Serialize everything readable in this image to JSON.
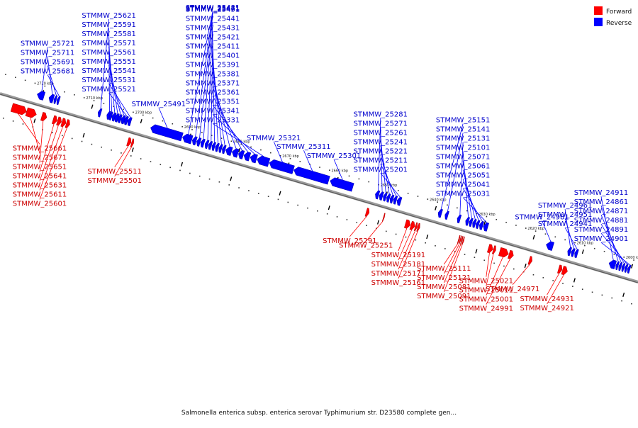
{
  "caption": "Salmonella enterica subsp. enterica serovar Typhimurium str. D23580 complete gen...",
  "colors": {
    "forward": "#ff0000",
    "forward_label": "#cc0000",
    "reverse": "#0000ff",
    "reverse_label": "#0000cc",
    "backbone": "#777777",
    "tick": "#000000"
  },
  "legend": [
    {
      "label": "Forward",
      "strand": "forward"
    },
    {
      "label": "Reverse",
      "strand": "reverse"
    }
  ],
  "scale": {
    "unit": "kbp",
    "ticks": [
      {
        "kbp": 2720,
        "label": "2720 kbp"
      },
      {
        "kbp": 2710,
        "label": "2710 kbp"
      },
      {
        "kbp": 2700,
        "label": "2700 kbp"
      },
      {
        "kbp": 2690,
        "label": "2690 kbp"
      },
      {
        "kbp": 2680,
        "label": "2680 kbp"
      },
      {
        "kbp": 2670,
        "label": "2670 kbp"
      },
      {
        "kbp": 2660,
        "label": "2660 kbp"
      },
      {
        "kbp": 2650,
        "label": "2650 kbp"
      },
      {
        "kbp": 2640,
        "label": "2640 kbp"
      },
      {
        "kbp": 2630,
        "label": "2630 kbp"
      },
      {
        "kbp": 2620,
        "label": "2620 kbp"
      },
      {
        "kbp": 2610,
        "label": "2610 kbp"
      },
      {
        "kbp": 2600,
        "label": "2600 kbp"
      }
    ]
  },
  "reverse_genes": [
    {
      "id": "STMMW_25721",
      "start": 2721.0,
      "end": 2719.6
    },
    {
      "id": "STMMW_25711",
      "start": 2718.6,
      "end": 2717.7
    },
    {
      "id": "STMMW_25691",
      "start": 2717.6,
      "end": 2717.1
    },
    {
      "id": "STMMW_25681",
      "start": 2717.0,
      "end": 2716.5
    },
    {
      "id": "STMMW_25621",
      "start": 2708.6,
      "end": 2708.0
    },
    {
      "id": "STMMW_25591",
      "start": 2706.8,
      "end": 2706.2
    },
    {
      "id": "STMMW_25581",
      "start": 2706.3,
      "end": 2705.8
    },
    {
      "id": "STMMW_25571",
      "start": 2705.8,
      "end": 2705.1
    },
    {
      "id": "STMMW_25561",
      "start": 2705.2,
      "end": 2704.5
    },
    {
      "id": "STMMW_25551",
      "start": 2704.6,
      "end": 2703.9
    },
    {
      "id": "STMMW_25541",
      "start": 2703.9,
      "end": 2703.2
    },
    {
      "id": "STMMW_25531",
      "start": 2702.6,
      "end": 2701.9
    },
    {
      "id": "STMMW_25521",
      "start": 2703.3,
      "end": 2702.6
    },
    {
      "id": "STMMW_25491",
      "start": 2697.9,
      "end": 2691.5
    },
    {
      "id": "STMMW_25481",
      "start": 2691.4,
      "end": 2689.5
    },
    {
      "id": "STMMW_25471",
      "start": 2689.4,
      "end": 2688.6
    },
    {
      "id": "STMMW_25461",
      "start": 2688.5,
      "end": 2687.8
    },
    {
      "id": "STMMW_25451",
      "start": 2687.7,
      "end": 2687.0
    },
    {
      "id": "STMMW_25441",
      "start": 2686.8,
      "end": 2686.2
    },
    {
      "id": "STMMW_25431",
      "start": 2686.1,
      "end": 2685.5
    },
    {
      "id": "STMMW_25421",
      "start": 2685.4,
      "end": 2684.8
    },
    {
      "id": "STMMW_25411",
      "start": 2684.7,
      "end": 2684.1
    },
    {
      "id": "STMMW_25401",
      "start": 2684.0,
      "end": 2683.4
    },
    {
      "id": "STMMW_25391",
      "start": 2683.3,
      "end": 2682.7
    },
    {
      "id": "STMMW_25381",
      "start": 2682.6,
      "end": 2681.4
    },
    {
      "id": "STMMW_25371",
      "start": 2681.3,
      "end": 2680.1
    },
    {
      "id": "STMMW_25361",
      "start": 2680.0,
      "end": 2679.0
    },
    {
      "id": "STMMW_25351",
      "start": 2678.9,
      "end": 2677.7
    },
    {
      "id": "STMMW_25341",
      "start": 2677.6,
      "end": 2676.3
    },
    {
      "id": "STMMW_25331",
      "start": 2676.2,
      "end": 2673.8
    },
    {
      "id": "STMMW_25321",
      "start": 2673.7,
      "end": 2668.8
    },
    {
      "id": "STMMW_25311",
      "start": 2668.7,
      "end": 2661.6
    },
    {
      "id": "STMMW_25301",
      "start": 2661.3,
      "end": 2656.7
    },
    {
      "id": "STMMW_25281",
      "start": 2652.1,
      "end": 2651.4
    },
    {
      "id": "STMMW_25271",
      "start": 2651.3,
      "end": 2650.6
    },
    {
      "id": "STMMW_25261",
      "start": 2650.5,
      "end": 2649.9
    },
    {
      "id": "STMMW_25241",
      "start": 2649.8,
      "end": 2649.2
    },
    {
      "id": "STMMW_25221",
      "start": 2649.1,
      "end": 2648.5
    },
    {
      "id": "STMMW_25211",
      "start": 2648.4,
      "end": 2647.8
    },
    {
      "id": "STMMW_25201",
      "start": 2647.7,
      "end": 2646.9
    },
    {
      "id": "STMMW_25151",
      "start": 2639.3,
      "end": 2638.6
    },
    {
      "id": "STMMW_25141",
      "start": 2637.9,
      "end": 2637.3
    },
    {
      "id": "STMMW_25131",
      "start": 2635.4,
      "end": 2634.8
    },
    {
      "id": "STMMW_25101",
      "start": 2633.7,
      "end": 2633.1
    },
    {
      "id": "STMMW_25071",
      "start": 2633.0,
      "end": 2632.4
    },
    {
      "id": "STMMW_25061",
      "start": 2632.3,
      "end": 2631.7
    },
    {
      "id": "STMMW_25051",
      "start": 2631.6,
      "end": 2631.0
    },
    {
      "id": "STMMW_25041",
      "start": 2630.9,
      "end": 2630.2
    },
    {
      "id": "STMMW_25031",
      "start": 2630.1,
      "end": 2629.2
    },
    {
      "id": "STMMW_24981",
      "start": 2617.3,
      "end": 2615.9
    },
    {
      "id": "STMMW_24961",
      "start": 2612.9,
      "end": 2612.3
    },
    {
      "id": "STMMW_24951",
      "start": 2612.2,
      "end": 2611.6
    },
    {
      "id": "STMMW_24941",
      "start": 2611.5,
      "end": 2610.9
    },
    {
      "id": "STMMW_24911",
      "start": 2604.5,
      "end": 2603.2
    },
    {
      "id": "STMMW_24861",
      "start": 2603.1,
      "end": 2602.6
    },
    {
      "id": "STMMW_24871",
      "start": 2602.5,
      "end": 2602.0
    },
    {
      "id": "STMMW_24881",
      "start": 2601.9,
      "end": 2601.4
    },
    {
      "id": "STMMW_24891",
      "start": 2601.3,
      "end": 2600.8
    },
    {
      "id": "STMMW_24901",
      "start": 2600.7,
      "end": 2600.2
    }
  ],
  "forward_genes": [
    {
      "id": "STMMW_25661",
      "start": 2725.0,
      "end": 2722.0
    },
    {
      "id": "STMMW_25671",
      "start": 2722.0,
      "end": 2720.0
    },
    {
      "id": "STMMW_25651",
      "start": 2718.9,
      "end": 2717.9
    },
    {
      "id": "STMMW_25641",
      "start": 2716.6,
      "end": 2715.8
    },
    {
      "id": "STMMW_25631",
      "start": 2715.7,
      "end": 2714.9
    },
    {
      "id": "STMMW_25611",
      "start": 2714.8,
      "end": 2714.0
    },
    {
      "id": "STMMW_25601",
      "start": 2713.9,
      "end": 2713.2
    },
    {
      "id": "STMMW_25511",
      "start": 2701.4,
      "end": 2700.7
    },
    {
      "id": "STMMW_25501",
      "start": 2700.6,
      "end": 2700.2
    },
    {
      "id": "STMMW_25291",
      "start": 2652.8,
      "end": 2652.2
    },
    {
      "id": "STMMW_25251",
      "start": 2649.3,
      "end": 2649.1
    },
    {
      "id": "STMMW_25191",
      "start": 2644.8,
      "end": 2643.8
    },
    {
      "id": "STMMW_25181",
      "start": 2643.7,
      "end": 2642.9
    },
    {
      "id": "STMMW_25171",
      "start": 2642.8,
      "end": 2642.4
    },
    {
      "id": "STMMW_25161",
      "start": 2642.3,
      "end": 2641.9
    },
    {
      "id": "STMMW_25111",
      "start": 2634.0,
      "end": 2633.8
    },
    {
      "id": "STMMW_25121",
      "start": 2633.7,
      "end": 2633.5
    },
    {
      "id": "STMMW_25081",
      "start": 2633.4,
      "end": 2633.2
    },
    {
      "id": "STMMW_25091",
      "start": 2633.1,
      "end": 2632.9
    },
    {
      "id": "STMMW_25021",
      "start": 2627.9,
      "end": 2627.0
    },
    {
      "id": "STMMW_25011",
      "start": 2626.9,
      "end": 2626.4
    },
    {
      "id": "STMMW_25001",
      "start": 2625.6,
      "end": 2623.8
    },
    {
      "id": "STMMW_24991",
      "start": 2623.7,
      "end": 2622.8
    },
    {
      "id": "STMMW_24971",
      "start": 2619.6,
      "end": 2619.0
    },
    {
      "id": "STMMW_24931",
      "start": 2613.6,
      "end": 2612.9
    },
    {
      "id": "STMMW_24921",
      "start": 2612.8,
      "end": 2611.8
    }
  ]
}
